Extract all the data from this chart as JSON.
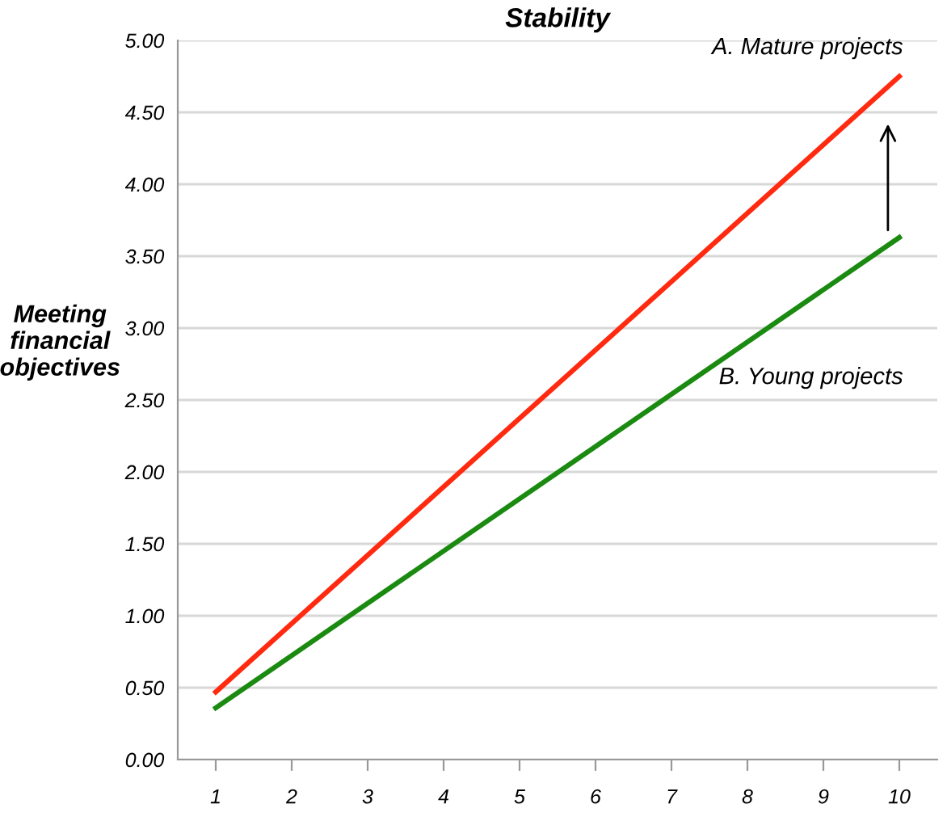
{
  "chart_data": {
    "type": "line",
    "title": "Stability",
    "ylabel": "Meeting\nfinancial\nobjectives",
    "categories": [
      "1",
      "2",
      "3",
      "4",
      "5",
      "6",
      "7",
      "8",
      "9",
      "10"
    ],
    "series": [
      {
        "name": "A. Mature projects",
        "color": "#ff2a10",
        "values": [
          0.47,
          null,
          null,
          null,
          null,
          null,
          null,
          null,
          null,
          4.75
        ]
      },
      {
        "name": "B. Young projects",
        "color": "#1a8a10",
        "values": [
          0.36,
          null,
          null,
          null,
          null,
          null,
          null,
          null,
          null,
          3.63
        ]
      }
    ],
    "ylim": [
      0,
      5
    ],
    "yticks": [
      {
        "value": 0,
        "label": "0.00"
      },
      {
        "value": 0.5,
        "label": "0.50"
      },
      {
        "value": 1,
        "label": "1.00"
      },
      {
        "value": 1.5,
        "label": "1.50"
      },
      {
        "value": 2,
        "label": "2.00"
      },
      {
        "value": 2.5,
        "label": "2.50"
      },
      {
        "value": 3,
        "label": "3.00"
      },
      {
        "value": 3.5,
        "label": "3.50"
      },
      {
        "value": 4,
        "label": "4.00"
      },
      {
        "value": 4.5,
        "label": "4.50"
      },
      {
        "value": 5,
        "label": "5.00"
      }
    ],
    "grid": "y",
    "legend": false,
    "marker": "none",
    "line_style": "solid"
  }
}
